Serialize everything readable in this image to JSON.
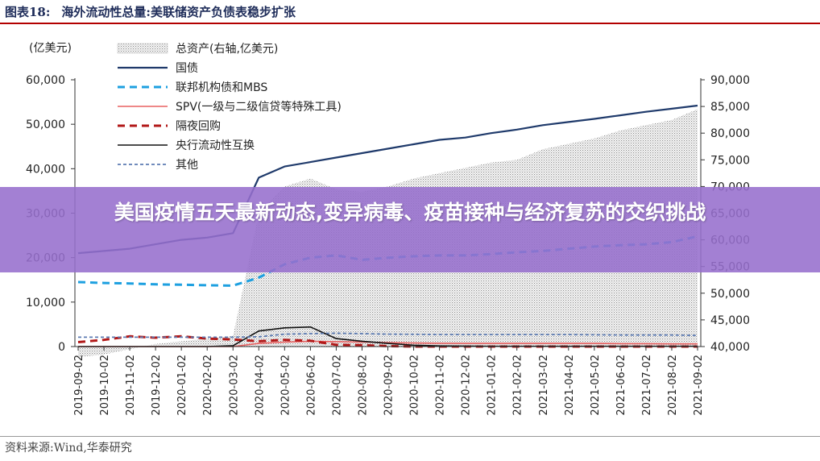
{
  "header": {
    "figure_no": "图表18:",
    "figure_title": "海外流动性总量:美联储资产负债表稳步扩张"
  },
  "source": "资料来源:Wind,华泰研究",
  "overlay": {
    "banner_text": "美国疫情五天最新动态,变异病毒、疫苗接种与经济复苏的交织挑战",
    "color": "#9a6fcf"
  },
  "chart_data": {
    "type": "line",
    "left_unit": "(亿美元)",
    "right_axis_note": "总资产(右轴,亿美元)",
    "left_ylim": [
      0,
      60000
    ],
    "left_ticks": [
      "0",
      "10,000",
      "20,000",
      "30,000",
      "40,000",
      "50,000",
      "60,000"
    ],
    "right_ylim": [
      40000,
      90000
    ],
    "right_ticks": [
      "40,000",
      "45,000",
      "50,000",
      "55,000",
      "60,000",
      "65,000",
      "70,000",
      "75,000",
      "80,000",
      "85,000",
      "90,000"
    ],
    "categories": [
      "2019-09-02",
      "2019-10-02",
      "2019-11-02",
      "2019-12-02",
      "2020-01-02",
      "2020-02-02",
      "2020-03-02",
      "2020-04-02",
      "2020-05-02",
      "2020-06-02",
      "2020-07-02",
      "2020-08-02",
      "2020-09-02",
      "2020-10-02",
      "2020-11-02",
      "2020-12-02",
      "2021-01-02",
      "2021-02-02",
      "2021-03-02",
      "2021-04-02",
      "2021-05-02",
      "2021-06-02",
      "2021-07-02",
      "2021-08-02",
      "2021-09-02"
    ],
    "area": {
      "name": "总资产(右轴,亿美元)",
      "axis": "right",
      "color": "#9a9a9a",
      "values": [
        38000,
        38500,
        39500,
        40500,
        41000,
        41500,
        42000,
        65000,
        70000,
        71500,
        69500,
        69000,
        70000,
        71500,
        72500,
        73500,
        74500,
        75000,
        77000,
        78000,
        79000,
        80500,
        81500,
        82500,
        84500
      ]
    },
    "series": [
      {
        "name": "国债",
        "axis": "left",
        "color": "#1f3a6b",
        "style": "solid",
        "width": 2.2,
        "values": [
          21000,
          21500,
          22000,
          23000,
          24000,
          24500,
          25500,
          38000,
          40500,
          41500,
          42500,
          43500,
          44500,
          45500,
          46500,
          47000,
          48000,
          48800,
          49800,
          50500,
          51200,
          52000,
          52800,
          53500,
          54200
        ]
      },
      {
        "name": "联邦机构债和MBS",
        "axis": "left",
        "color": "#1ea0e0",
        "style": "dash",
        "width": 3,
        "values": [
          14500,
          14300,
          14200,
          14000,
          13900,
          13800,
          13700,
          15500,
          18500,
          20000,
          20500,
          19500,
          20000,
          20300,
          20500,
          20500,
          20800,
          21200,
          21500,
          22000,
          22500,
          22800,
          23000,
          23500,
          24800
        ]
      },
      {
        "name": "SPV(一级与二级信贷等特殊工具)",
        "axis": "left",
        "color": "#e86060",
        "style": "solid",
        "width": 1.6,
        "values": [
          0,
          0,
          0,
          0,
          0,
          0,
          0,
          700,
          1000,
          1200,
          1100,
          1000,
          900,
          800,
          750,
          700,
          700,
          700,
          700,
          700,
          700,
          650,
          650,
          600,
          600
        ]
      },
      {
        "name": "隔夜回购",
        "axis": "left",
        "color": "#b21818",
        "style": "dash",
        "width": 3,
        "values": [
          1000,
          1500,
          2300,
          2000,
          2300,
          1800,
          1600,
          1200,
          1500,
          1300,
          400,
          300,
          100,
          0,
          0,
          0,
          0,
          0,
          0,
          0,
          0,
          0,
          0,
          0,
          0
        ]
      },
      {
        "name": "央行流动性互换",
        "axis": "left",
        "color": "#111111",
        "style": "solid",
        "width": 1.6,
        "values": [
          0,
          0,
          0,
          0,
          0,
          0,
          200,
          3500,
          4200,
          4400,
          1800,
          1200,
          700,
          300,
          150,
          100,
          50,
          50,
          50,
          50,
          50,
          50,
          50,
          50,
          50
        ]
      },
      {
        "name": "其他",
        "axis": "left",
        "color": "#5c7bb2",
        "style": "dashfine",
        "width": 1.8,
        "values": [
          2100,
          2100,
          2100,
          2100,
          2100,
          2100,
          2100,
          2200,
          2800,
          2900,
          3000,
          2900,
          2800,
          2750,
          2700,
          2700,
          2700,
          2700,
          2700,
          2700,
          2650,
          2600,
          2600,
          2600,
          2500
        ]
      }
    ],
    "legend_position": "top-left"
  }
}
